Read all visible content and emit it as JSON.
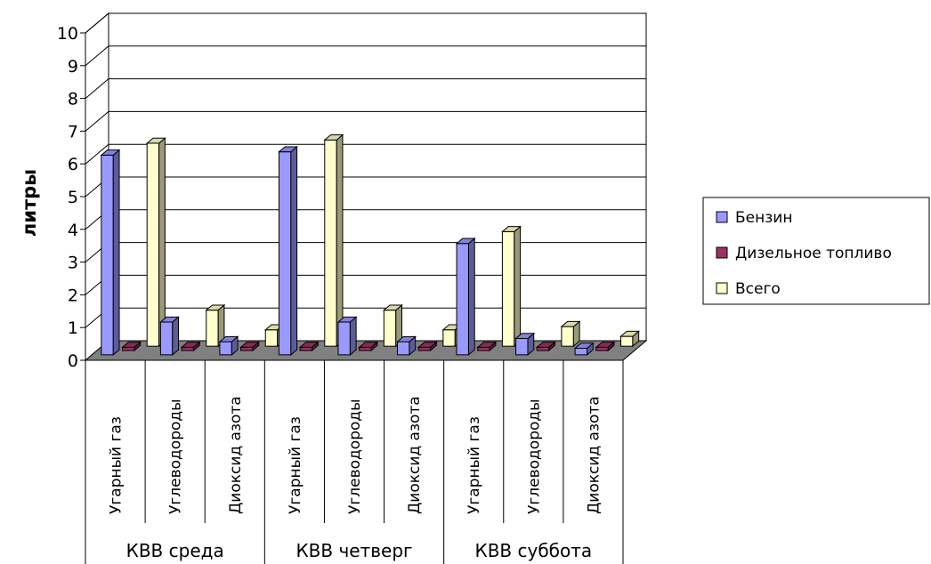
{
  "chart_data": {
    "type": "bar",
    "ylabel": "литры",
    "ylim": [
      0,
      10
    ],
    "yticks": [
      0,
      1,
      2,
      3,
      4,
      5,
      6,
      7,
      8,
      9,
      10
    ],
    "groups": [
      "КВВ среда",
      "КВВ четверг",
      "КВВ суббота"
    ],
    "categories": [
      "Угарный газ",
      "Углеводороды",
      "Диоксид азота",
      "Угарный газ",
      "Углеводороды",
      "Диоксид азота",
      "Угарный газ",
      "Углеводороды",
      "Диоксид азота"
    ],
    "series": [
      {
        "name": "Бензин",
        "values": [
          6.1,
          1.0,
          0.4,
          6.2,
          1.0,
          0.4,
          3.4,
          0.5,
          0.2
        ]
      },
      {
        "name": "Дизельное топливо",
        "values": [
          0.1,
          0.1,
          0.1,
          0.1,
          0.1,
          0.1,
          0.1,
          0.1,
          0.1
        ]
      },
      {
        "name": "Всего",
        "values": [
          6.2,
          1.1,
          0.5,
          6.3,
          1.1,
          0.5,
          3.5,
          0.6,
          0.3
        ]
      }
    ],
    "colors": {
      "Бензин": "#9999ff",
      "Дизельное топливо": "#993366",
      "Всего": "#ffffcc"
    },
    "grid": true,
    "legend": "right"
  }
}
